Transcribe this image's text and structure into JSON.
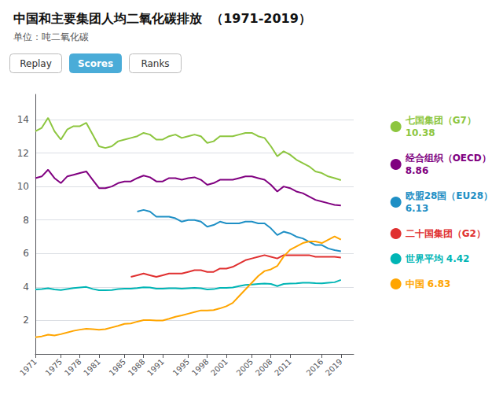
{
  "chart_data": {
    "type": "line",
    "title": "中国和主要集团人均二氧化碳排放  （1971-2019）",
    "subtitle": "单位：吨二氧化碳",
    "x": [
      1971,
      1972,
      1973,
      1974,
      1975,
      1976,
      1977,
      1978,
      1979,
      1980,
      1981,
      1982,
      1983,
      1984,
      1985,
      1986,
      1987,
      1988,
      1989,
      1990,
      1991,
      1992,
      1993,
      1994,
      1995,
      1996,
      1997,
      1998,
      1999,
      2000,
      2001,
      2002,
      2003,
      2004,
      2005,
      2006,
      2007,
      2008,
      2009,
      2010,
      2011,
      2012,
      2013,
      2014,
      2015,
      2016,
      2017,
      2018,
      2019
    ],
    "series": [
      {
        "name": "七国集团（G7）\n10.38",
        "color": "#8dc63f",
        "values": [
          13.3,
          13.5,
          14.1,
          13.3,
          12.8,
          13.4,
          13.6,
          13.6,
          13.8,
          13.1,
          12.4,
          12.3,
          12.4,
          12.7,
          12.8,
          12.9,
          13.0,
          13.2,
          13.1,
          12.8,
          12.8,
          13.0,
          13.1,
          12.9,
          13.0,
          13.1,
          13.0,
          12.6,
          12.7,
          13.0,
          13.0,
          13.0,
          13.1,
          13.2,
          13.2,
          13.0,
          12.9,
          12.4,
          11.8,
          12.1,
          11.9,
          11.6,
          11.4,
          11.2,
          10.9,
          10.8,
          10.6,
          10.5,
          10.38
        ]
      },
      {
        "name": "经合组织（OECD）\n8.86",
        "color": "#800080",
        "values": [
          10.5,
          10.6,
          11.0,
          10.5,
          10.2,
          10.6,
          10.7,
          10.8,
          10.9,
          10.4,
          9.9,
          9.9,
          10.0,
          10.2,
          10.3,
          10.3,
          10.5,
          10.65,
          10.55,
          10.3,
          10.3,
          10.5,
          10.5,
          10.4,
          10.5,
          10.55,
          10.4,
          10.1,
          10.2,
          10.4,
          10.4,
          10.4,
          10.5,
          10.6,
          10.6,
          10.5,
          10.4,
          10.1,
          9.7,
          10.0,
          9.9,
          9.7,
          9.6,
          9.4,
          9.2,
          9.1,
          9.0,
          8.9,
          8.86
        ]
      },
      {
        "name": "欧盟28国（EU28）\n6.13",
        "color": "#1e8fc5",
        "values": [
          null,
          null,
          null,
          null,
          null,
          null,
          null,
          null,
          null,
          null,
          null,
          null,
          null,
          null,
          null,
          null,
          8.5,
          8.6,
          8.5,
          8.2,
          8.2,
          8.2,
          8.1,
          7.9,
          8.0,
          8.0,
          7.9,
          7.6,
          7.7,
          7.9,
          7.8,
          7.8,
          7.8,
          7.9,
          7.9,
          7.8,
          7.8,
          7.5,
          7.1,
          7.3,
          7.2,
          7.0,
          6.9,
          6.7,
          6.5,
          6.5,
          6.3,
          6.2,
          6.13
        ]
      },
      {
        "name": "二十国集团（G2）",
        "color": "#e03030",
        "values": [
          null,
          null,
          null,
          null,
          null,
          null,
          null,
          null,
          null,
          null,
          null,
          null,
          null,
          null,
          null,
          4.6,
          4.7,
          4.8,
          4.7,
          4.6,
          4.7,
          4.8,
          4.8,
          4.8,
          4.9,
          5.0,
          5.0,
          4.9,
          4.9,
          5.1,
          5.1,
          5.2,
          5.4,
          5.6,
          5.7,
          5.8,
          5.9,
          5.8,
          5.7,
          5.9,
          5.9,
          5.9,
          5.9,
          5.9,
          5.8,
          5.8,
          5.8,
          5.8,
          5.75
        ]
      },
      {
        "name": "世界平均 4.42",
        "color": "#00b5b5",
        "values": [
          3.85,
          3.88,
          3.92,
          3.85,
          3.82,
          3.88,
          3.93,
          3.97,
          4.0,
          3.88,
          3.8,
          3.8,
          3.82,
          3.87,
          3.9,
          3.9,
          3.93,
          3.98,
          3.97,
          3.9,
          3.9,
          3.92,
          3.92,
          3.9,
          3.92,
          3.94,
          3.92,
          3.85,
          3.87,
          3.95,
          3.95,
          3.97,
          4.05,
          4.12,
          4.15,
          4.18,
          4.2,
          4.18,
          4.05,
          4.18,
          4.2,
          4.22,
          4.25,
          4.25,
          4.23,
          4.22,
          4.25,
          4.28,
          4.42
        ]
      },
      {
        "name": "中国 6.83",
        "color": "#ffa500",
        "values": [
          1.0,
          1.05,
          1.15,
          1.1,
          1.18,
          1.28,
          1.38,
          1.45,
          1.5,
          1.48,
          1.45,
          1.48,
          1.58,
          1.68,
          1.8,
          1.82,
          1.93,
          2.02,
          2.02,
          2.0,
          2.0,
          2.1,
          2.22,
          2.3,
          2.4,
          2.5,
          2.6,
          2.6,
          2.62,
          2.72,
          2.85,
          3.05,
          3.45,
          3.85,
          4.25,
          4.65,
          4.95,
          5.05,
          5.25,
          5.82,
          6.22,
          6.42,
          6.62,
          6.72,
          6.72,
          6.62,
          6.82,
          7.02,
          6.83
        ]
      }
    ],
    "xlim": [
      1971,
      2021
    ],
    "xticks": [
      1971,
      1975,
      1978,
      1981,
      1985,
      1988,
      1991,
      1995,
      1998,
      2001,
      2005,
      2008,
      2011,
      2016,
      2019
    ],
    "ylim": [
      0,
      15.5
    ],
    "yticks": [
      2,
      4,
      6,
      8,
      10,
      12,
      14
    ],
    "grid": true,
    "legend": "right",
    "annotations": [
      {
        "text": "Replay"
      },
      {
        "text": "Scores",
        "color": "#4aacd8"
      },
      {
        "text": "Ranks"
      }
    ]
  }
}
